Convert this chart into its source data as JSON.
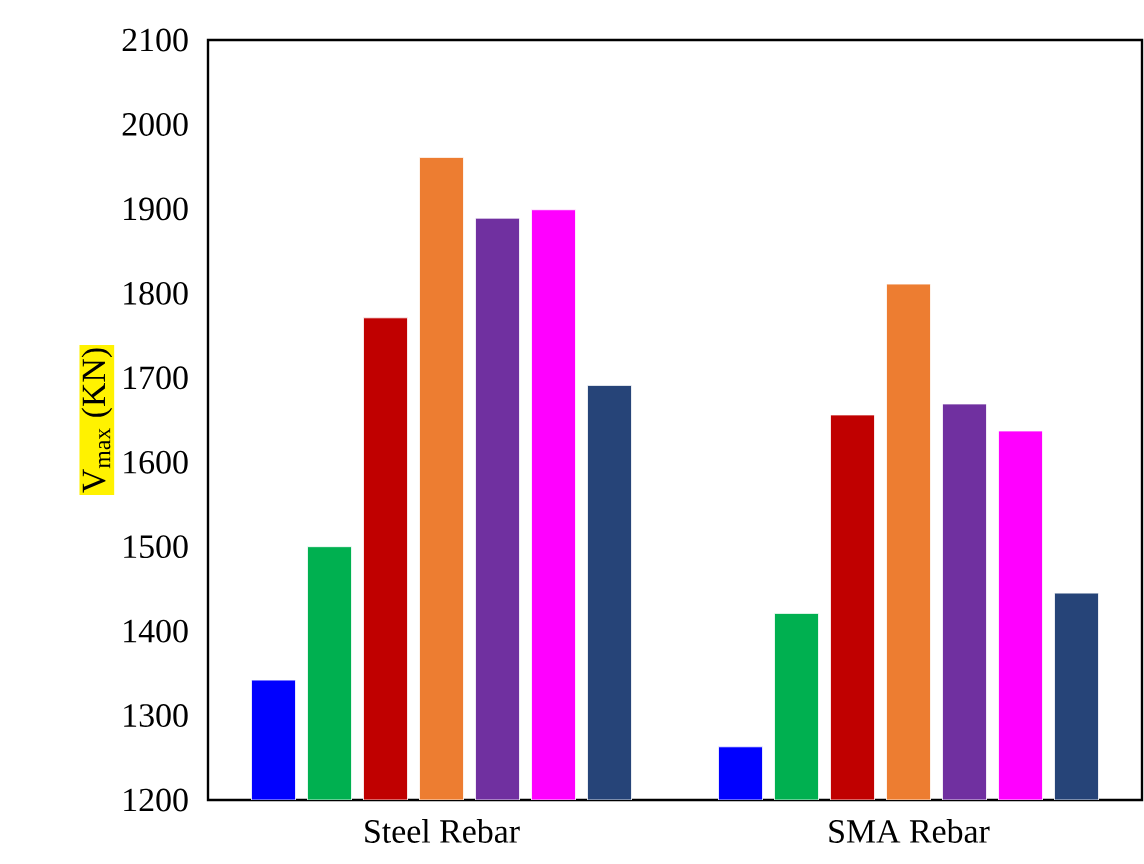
{
  "chart_data": {
    "type": "bar",
    "ylabel": "V$_{max}$ (KN)",
    "categories": [
      "Steel Rebar",
      "SMA Rebar"
    ],
    "series": [
      {
        "color": "#0000ff",
        "values": [
          1342,
          1263
        ]
      },
      {
        "color": "#00b050",
        "values": [
          1500,
          1421
        ]
      },
      {
        "color": "#c00000",
        "values": [
          1771,
          1656
        ]
      },
      {
        "color": "#ed7d31",
        "values": [
          1961,
          1811
        ]
      },
      {
        "color": "#7030a0",
        "values": [
          1889,
          1669
        ]
      },
      {
        "color": "#ff00ff",
        "values": [
          1899,
          1637
        ]
      },
      {
        "color": "#264478",
        "values": [
          1691,
          1445
        ]
      }
    ],
    "ylim": [
      1200,
      2100
    ],
    "yticks": [
      1200,
      1300,
      1400,
      1500,
      1600,
      1700,
      1800,
      1900,
      2000,
      2100
    ]
  }
}
